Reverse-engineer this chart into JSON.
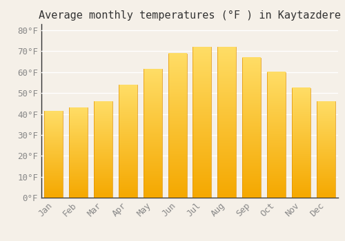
{
  "title": "Average monthly temperatures (°F ) in Kaytazdere",
  "months": [
    "Jan",
    "Feb",
    "Mar",
    "Apr",
    "May",
    "Jun",
    "Jul",
    "Aug",
    "Sep",
    "Oct",
    "Nov",
    "Dec"
  ],
  "values": [
    41.5,
    43,
    46,
    54,
    61.5,
    69,
    72,
    72,
    67,
    60,
    52.5,
    46
  ],
  "bar_color_top": "#FFDD66",
  "bar_color_bottom": "#F5A800",
  "background_color": "#F5F0E8",
  "grid_color": "#FFFFFF",
  "ylim": [
    0,
    83
  ],
  "yticks": [
    0,
    10,
    20,
    30,
    40,
    50,
    60,
    70,
    80
  ],
  "title_fontsize": 11,
  "tick_fontsize": 9,
  "tick_color": "#888888",
  "title_color": "#333333",
  "spine_color": "#333333"
}
